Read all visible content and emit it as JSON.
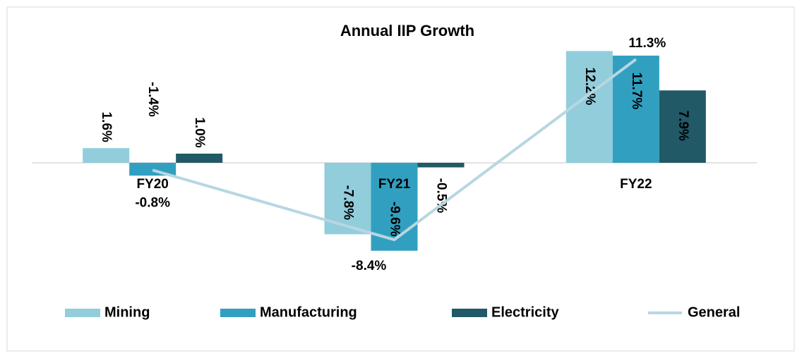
{
  "chart_data": {
    "type": "bar",
    "title": "Annual IIP Growth",
    "categories": [
      "FY20",
      "FY21",
      "FY22"
    ],
    "ylim": [
      -10,
      14
    ],
    "series": [
      {
        "name": "Mining",
        "color": "#92cddc",
        "values": [
          1.6,
          -7.8,
          12.2
        ],
        "value_labels": [
          "1.6%",
          "-7.8%",
          "12.2%"
        ]
      },
      {
        "name": "Manufacturing",
        "color": "#31a0c0",
        "values": [
          -1.4,
          -9.6,
          11.7
        ],
        "value_labels": [
          "-1.4%",
          "-9.6%",
          "11.7%"
        ]
      },
      {
        "name": "Electricity",
        "color": "#215967",
        "values": [
          1.0,
          -0.5,
          7.9
        ],
        "value_labels": [
          "1.0%",
          "-0.5%",
          "7.9%"
        ]
      },
      {
        "name": "General",
        "type": "line",
        "color": "#b7d7e2",
        "values": [
          -0.8,
          -8.4,
          11.3
        ],
        "value_labels": [
          "-0.8%",
          "-8.4%",
          "11.3%"
        ]
      }
    ],
    "legend": "bottom"
  }
}
